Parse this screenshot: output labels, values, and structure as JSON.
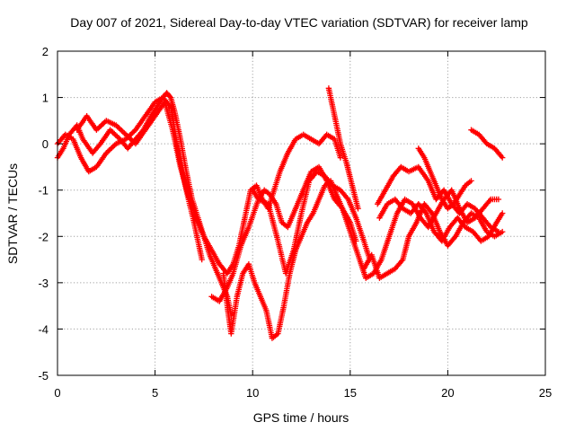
{
  "chart_data": {
    "type": "scatter",
    "title": "Day 007 of 2021, Sidereal Day-to-day VTEC variation (SDTVAR) for receiver lamp",
    "xlabel": "GPS time / hours",
    "ylabel": "SDTVAR / TECUs",
    "xlim": [
      0,
      25
    ],
    "ylim": [
      -5,
      2
    ],
    "xticks": [
      "0",
      "5",
      "10",
      "15",
      "20",
      "25"
    ],
    "yticks": [
      "-5",
      "-4",
      "-3",
      "-2",
      "-1",
      "0",
      "1",
      "2"
    ],
    "grid": true,
    "marker": "plus",
    "color": "#ff0000",
    "series": [
      {
        "x": [
          0.0,
          0.3,
          0.6,
          1.0,
          1.3,
          1.8,
          2.2,
          2.7,
          3.2,
          3.6,
          4.0,
          4.4,
          4.8,
          5.1,
          5.4,
          5.6,
          5.8,
          6.0,
          6.3,
          6.6,
          6.9,
          7.2,
          7.5,
          7.8,
          8.1,
          8.4,
          8.7,
          8.9
        ],
        "y": [
          -0.3,
          -0.1,
          0.2,
          0.4,
          0.1,
          -0.2,
          0.0,
          0.3,
          0.1,
          -0.1,
          0.1,
          0.3,
          0.6,
          0.8,
          1.0,
          1.1,
          1.0,
          0.7,
          0.1,
          -0.6,
          -1.2,
          -1.6,
          -2.0,
          -2.4,
          -2.7,
          -3.0,
          -3.3,
          -3.7
        ]
      },
      {
        "x": [
          0.0,
          0.4,
          0.8,
          1.2,
          1.6,
          2.0,
          2.5,
          3.0,
          3.5,
          4.0,
          4.5,
          5.0,
          5.4,
          5.8,
          6.2,
          6.6,
          7.0,
          7.4
        ],
        "y": [
          0.0,
          0.2,
          0.1,
          -0.3,
          -0.6,
          -0.5,
          -0.2,
          0.0,
          0.1,
          0.3,
          0.6,
          0.9,
          1.0,
          0.8,
          -0.2,
          -1.0,
          -1.7,
          -2.5
        ]
      },
      {
        "x": [
          1.0,
          1.5,
          2.0,
          2.5,
          3.0,
          3.5,
          4.0,
          4.5,
          5.0,
          5.5,
          5.9,
          6.3,
          6.7,
          7.1,
          7.5,
          7.9,
          8.3,
          8.7,
          9.0,
          9.3,
          9.6,
          9.9,
          10.2,
          10.5,
          10.8,
          11.1,
          11.4,
          11.8,
          12.2,
          12.6,
          13.0,
          13.4,
          13.8,
          14.2,
          14.5
        ],
        "y": [
          0.3,
          0.6,
          0.3,
          0.5,
          0.4,
          0.2,
          0.0,
          0.3,
          0.6,
          0.9,
          0.3,
          -0.5,
          -1.1,
          -1.6,
          -2.0,
          -2.3,
          -2.6,
          -2.8,
          -2.6,
          -2.2,
          -1.6,
          -1.0,
          -0.9,
          -1.2,
          -1.4,
          -1.0,
          -0.6,
          -0.2,
          0.1,
          0.2,
          0.1,
          0.0,
          0.2,
          0.1,
          -0.3
        ]
      },
      {
        "x": [
          7.9,
          8.3,
          8.7,
          9.0,
          9.4,
          9.8,
          10.3,
          10.8,
          11.3,
          11.7,
          12.1,
          12.5,
          12.9,
          13.3,
          13.7,
          14.1,
          14.5,
          14.9,
          15.3,
          15.7,
          16.0
        ],
        "y": [
          -3.3,
          -3.4,
          -3.1,
          -2.8,
          -2.2,
          -1.8,
          -1.2,
          -1.3,
          -2.1,
          -2.8,
          -2.3,
          -1.5,
          -0.8,
          -0.6,
          -0.7,
          -0.9,
          -1.0,
          -1.2,
          -1.6,
          -2.1,
          -2.5
        ]
      },
      {
        "x": [
          8.5,
          8.7,
          8.9,
          9.2,
          9.5,
          9.8,
          10.1,
          10.4,
          10.7,
          11.0,
          11.3,
          11.6,
          11.9,
          12.2,
          12.5,
          12.8,
          13.1,
          13.4,
          13.7,
          14.0,
          14.3,
          14.6,
          15.0,
          15.4,
          15.8,
          16.2,
          16.6,
          17.0,
          17.4,
          17.8,
          18.2,
          18.6,
          19.0,
          19.4,
          19.8,
          20.2,
          20.6,
          21.0,
          21.4,
          21.8,
          22.2,
          22.6
        ],
        "y": [
          -2.8,
          -3.5,
          -4.1,
          -3.3,
          -2.8,
          -2.6,
          -3.0,
          -3.3,
          -3.6,
          -4.2,
          -4.1,
          -3.5,
          -2.8,
          -2.3,
          -2.0,
          -1.7,
          -1.5,
          -1.2,
          -0.9,
          -0.8,
          -1.1,
          -1.4,
          -1.9,
          -2.4,
          -2.9,
          -2.8,
          -2.5,
          -2.0,
          -1.5,
          -1.2,
          -1.3,
          -1.6,
          -1.8,
          -1.5,
          -1.2,
          -1.0,
          -1.4,
          -1.7,
          -1.6,
          -1.4,
          -1.2,
          -1.2
        ]
      },
      {
        "x": [
          10.0,
          10.3,
          10.6,
          10.9,
          11.2,
          11.5,
          11.8,
          12.2,
          12.6,
          13.0,
          13.4,
          13.8,
          14.2,
          14.6,
          15.0,
          15.3
        ],
        "y": [
          -1.0,
          -1.2,
          -1.0,
          -1.1,
          -1.3,
          -1.7,
          -1.8,
          -1.4,
          -1.0,
          -0.6,
          -0.5,
          -0.8,
          -1.2,
          -1.4,
          -1.7,
          -2.1
        ]
      },
      {
        "x": [
          13.9,
          14.1,
          14.3,
          14.5,
          14.8,
          15.1,
          15.4
        ],
        "y": [
          1.2,
          0.8,
          0.4,
          0.0,
          -0.4,
          -0.9,
          -1.4
        ]
      },
      {
        "x": [
          15.7,
          16.1,
          16.5,
          16.9,
          17.3,
          17.7,
          18.0,
          18.4,
          18.8,
          19.2,
          19.6,
          20.0,
          20.4,
          20.8,
          21.2,
          21.6,
          22.0,
          22.4,
          22.8
        ],
        "y": [
          -2.7,
          -2.4,
          -2.9,
          -2.8,
          -2.7,
          -2.5,
          -2.0,
          -1.7,
          -1.3,
          -1.5,
          -1.9,
          -2.2,
          -2.0,
          -1.7,
          -1.5,
          -1.6,
          -1.9,
          -2.0,
          -1.9
        ]
      },
      {
        "x": [
          16.5,
          16.9,
          17.3,
          17.7,
          18.1,
          18.5,
          18.9,
          19.3,
          19.7,
          20.1,
          20.5,
          20.9,
          21.3,
          21.7,
          22.1,
          22.5,
          22.8
        ],
        "y": [
          -1.6,
          -1.3,
          -1.2,
          -1.4,
          -1.5,
          -1.3,
          -1.5,
          -1.9,
          -2.1,
          -1.8,
          -1.6,
          -1.8,
          -1.9,
          -2.1,
          -2.0,
          -1.7,
          -1.5
        ]
      },
      {
        "x": [
          16.4,
          16.8,
          17.2,
          17.6,
          18.0,
          18.5,
          19.0,
          19.4,
          19.8,
          20.2,
          20.6,
          21.0,
          21.4,
          21.8,
          22.2,
          22.6
        ],
        "y": [
          -1.3,
          -1.0,
          -0.7,
          -0.5,
          -0.6,
          -0.5,
          -0.8,
          -1.2,
          -1.0,
          -1.3,
          -1.5,
          -1.3,
          -1.4,
          -1.6,
          -1.8,
          -1.9
        ]
      },
      {
        "x": [
          18.5,
          18.8,
          19.1,
          19.4,
          19.7,
          20.0,
          20.3,
          20.6,
          20.9,
          21.2
        ],
        "y": [
          -0.1,
          -0.3,
          -0.6,
          -0.9,
          -1.2,
          -1.4,
          -1.3,
          -1.1,
          -0.9,
          -0.8
        ]
      },
      {
        "x": [
          21.2,
          21.6,
          22.0,
          22.4,
          22.8
        ],
        "y": [
          0.3,
          0.2,
          0.0,
          -0.1,
          -0.3
        ]
      }
    ]
  }
}
